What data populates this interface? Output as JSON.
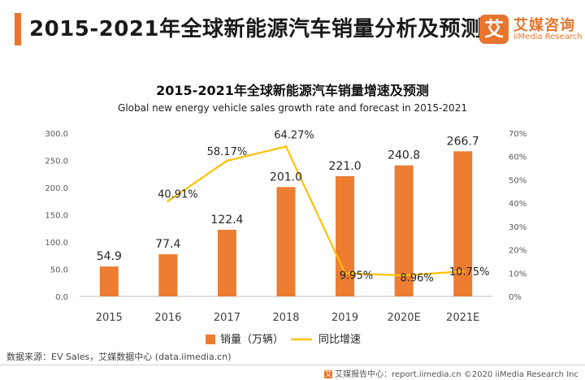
{
  "header": {
    "title": "2015-2021年全球新能源汽车销量分析及预测"
  },
  "logo": {
    "mark": "艾",
    "name_cn": "艾媒咨询",
    "name_en": "iiMedia Research"
  },
  "colors": {
    "accent": "#e8742e",
    "bar": "#ed7d31",
    "line": "#ffc000"
  },
  "chart_data": {
    "type": "bar",
    "title": "2015-2021年全球新能源汽车销量增速及预测",
    "subtitle": "Global new energy vehicle sales growth rate and forecast in 2015-2021",
    "categories": [
      "2015",
      "2016",
      "2017",
      "2018",
      "2019",
      "2020E",
      "2021E"
    ],
    "series": [
      {
        "name": "销量（万辆）",
        "type": "bar",
        "axis": "left",
        "values": [
          54.9,
          77.4,
          122.4,
          201.0,
          221.0,
          240.8,
          266.7
        ],
        "labels": [
          "54.9",
          "77.4",
          "122.4",
          "201.0",
          "221.0",
          "240.8",
          "266.7"
        ]
      },
      {
        "name": "同比增速",
        "type": "line",
        "axis": "right",
        "values": [
          null,
          40.91,
          58.17,
          64.27,
          9.95,
          8.96,
          10.75
        ],
        "labels": [
          "",
          "40.91%",
          "58.17%",
          "64.27%",
          "9.95%",
          "8.96%",
          "10.75%"
        ]
      }
    ],
    "y_left": {
      "min": 0,
      "max": 300,
      "ticks": [
        "0.0",
        "50.0",
        "100.0",
        "150.0",
        "200.0",
        "250.0",
        "300.0"
      ]
    },
    "y_right": {
      "min": 0,
      "max": 70,
      "ticks": [
        "0%",
        "10%",
        "20%",
        "30%",
        "40%",
        "50%",
        "60%",
        "70%"
      ]
    },
    "grid": false,
    "legend": "bottom"
  },
  "footer": {
    "source": "数据来源：EV Sales，艾媒数据中心 (data.iimedia.cn)",
    "right_icon": "艾",
    "right_text": "艾媒报告中心：report.iimedia.cn   ©2020  iiMedia Research  Inc"
  }
}
